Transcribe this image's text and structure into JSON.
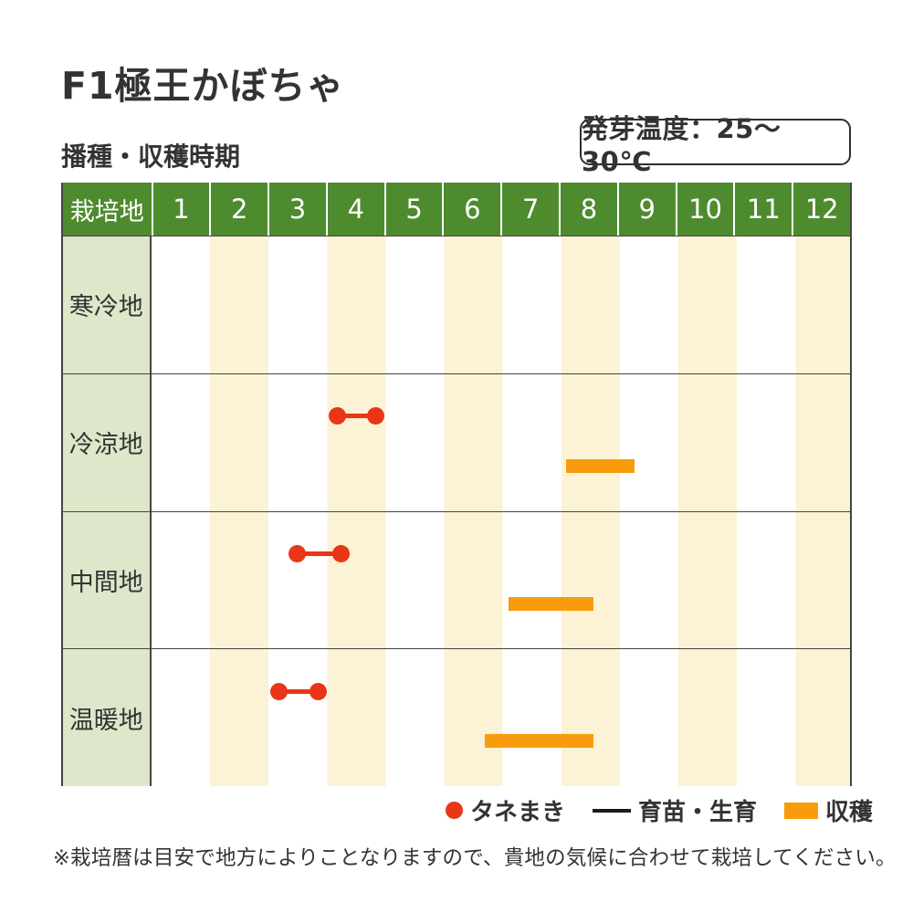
{
  "page": {
    "title": "F1極王かぼちゃ",
    "section_heading": "播種・収穫時期",
    "germination_badge": "発芽温度：25～30℃",
    "footnote": "※栽培暦は目安で地方によりことなりますので、貴地の気候に合わせて栽培してください。"
  },
  "colors": {
    "header_green": "#4e8b2e",
    "label_bg": "#dde7c9",
    "stripe_cream": "#fcf2d5",
    "sowing_red": "#ea3517",
    "harvest_orange": "#f89c0d",
    "border_dark": "#45453f",
    "text_dark": "#333333"
  },
  "chart_data": {
    "type": "gantt",
    "title": "播種・収穫時期",
    "corner_label": "栽培地",
    "months": [
      "1",
      "2",
      "3",
      "4",
      "5",
      "6",
      "7",
      "8",
      "9",
      "10",
      "11",
      "12"
    ],
    "axis_range_months": [
      0,
      12
    ],
    "axis_note": "positions in month units: 0 = start of January, 12 = end of December; even-numbered month columns shaded cream",
    "rows": [
      {
        "label": "寒冷地",
        "sowing": null,
        "harvest": null
      },
      {
        "label": "冷涼地",
        "sowing": [
          3.18,
          3.83
        ],
        "harvest": [
          7.08,
          8.25
        ]
      },
      {
        "label": "中間地",
        "sowing": [
          2.49,
          3.24
        ],
        "harvest": [
          6.11,
          7.55
        ]
      },
      {
        "label": "温暖地",
        "sowing": [
          2.18,
          2.86
        ],
        "harvest": [
          5.7,
          7.55
        ]
      }
    ],
    "legend": [
      {
        "marker": "dot",
        "label": "タネまき"
      },
      {
        "marker": "line",
        "label": "育苗・生育"
      },
      {
        "marker": "bar",
        "label": "収穫"
      }
    ]
  }
}
